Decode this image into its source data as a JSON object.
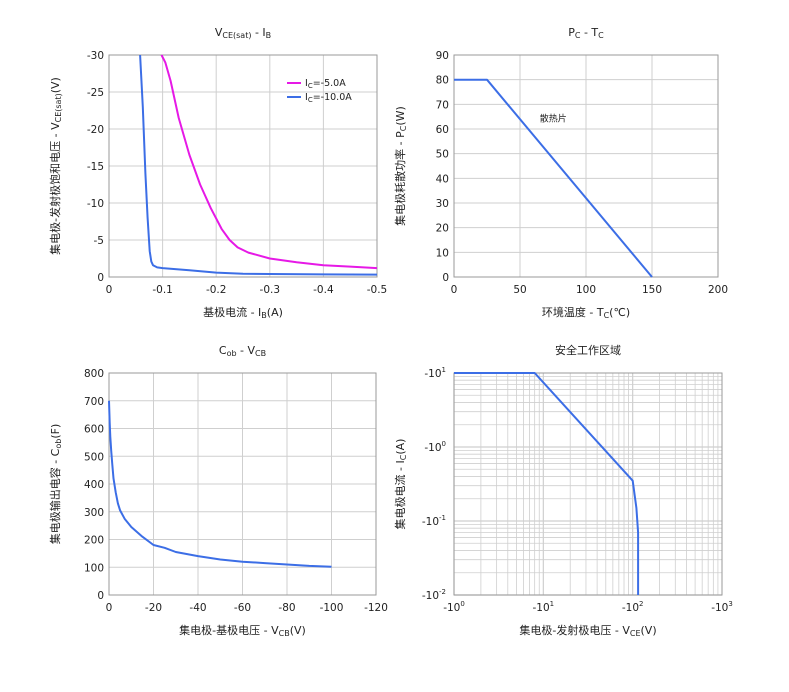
{
  "colors": {
    "blue": "#3c6ee6",
    "magenta": "#e619e6",
    "grid": "#cfcfcf",
    "frame": "#9a9a9a"
  },
  "chart_data": [
    {
      "id": "vce",
      "type": "line",
      "title": [
        "V",
        "CE(sat)",
        " - I",
        "B"
      ],
      "xlabel": [
        "基极电流 - I",
        "B",
        "(A)"
      ],
      "ylabel": [
        "集电极-发射极饱和电压 - V",
        "CE(sat)",
        "(V)"
      ],
      "xlim": [
        0,
        -0.5
      ],
      "ylim": [
        0,
        -30
      ],
      "xticks": [
        0,
        -0.1,
        -0.2,
        -0.3,
        -0.4,
        -0.5
      ],
      "xtick_labels": [
        "0",
        "-0.1",
        "-0.2",
        "-0.3",
        "-0.4",
        "-0.5"
      ],
      "yticks": [
        0,
        -5,
        -10,
        -15,
        -20,
        -25,
        -30
      ],
      "ytick_labels": [
        "0",
        "-5",
        "-10",
        "-15",
        "-20",
        "-25",
        "-30"
      ],
      "legend": "top-right",
      "series": [
        {
          "name": [
            "I",
            "C",
            "=-5.0A"
          ],
          "color": "#e619e6",
          "x": [
            -0.098,
            -0.105,
            -0.115,
            -0.13,
            -0.15,
            -0.17,
            -0.19,
            -0.21,
            -0.225,
            -0.24,
            -0.26,
            -0.3,
            -0.35,
            -0.4,
            -0.45,
            -0.5
          ],
          "y": [
            -30,
            -29,
            -26.5,
            -21.5,
            -16.5,
            -12.5,
            -9.3,
            -6.5,
            -5.0,
            -4.0,
            -3.3,
            -2.5,
            -2.0,
            -1.6,
            -1.4,
            -1.2
          ]
        },
        {
          "name": [
            "I",
            "C",
            "=-10.0A"
          ],
          "color": "#3c6ee6",
          "x": [
            -0.058,
            -0.063,
            -0.068,
            -0.072,
            -0.076,
            -0.079,
            -0.082,
            -0.09,
            -0.1,
            -0.15,
            -0.2,
            -0.25,
            -0.3,
            -0.4,
            -0.5
          ],
          "y": [
            -30,
            -23,
            -14,
            -8,
            -3.5,
            -2.1,
            -1.6,
            -1.3,
            -1.2,
            -0.9,
            -0.6,
            -0.45,
            -0.4,
            -0.35,
            -0.32
          ]
        }
      ]
    },
    {
      "id": "pc",
      "type": "line",
      "title": [
        "P",
        "C",
        " - T",
        "C"
      ],
      "xlabel": [
        "环境温度 - T",
        "C",
        "(℃)"
      ],
      "ylabel": [
        "集电极耗散功率 - P",
        "C",
        "(W)"
      ],
      "xlim": [
        0,
        200
      ],
      "ylim": [
        0,
        90
      ],
      "xticks": [
        0,
        50,
        100,
        150,
        200
      ],
      "xtick_labels": [
        "0",
        "50",
        "100",
        "150",
        "200"
      ],
      "yticks": [
        0,
        10,
        20,
        30,
        40,
        50,
        60,
        70,
        80,
        90
      ],
      "ytick_labels": [
        "0",
        "10",
        "20",
        "30",
        "40",
        "50",
        "60",
        "70",
        "80",
        "90"
      ],
      "annotation": {
        "text": "散热片",
        "x": 65,
        "y": 63
      },
      "series": [
        {
          "color": "#3c6ee6",
          "x": [
            0,
            25,
            150
          ],
          "y": [
            80,
            80,
            0
          ]
        }
      ]
    },
    {
      "id": "cob",
      "type": "line",
      "title": [
        "C",
        "ob",
        " - V",
        "CB"
      ],
      "xlabel": [
        "集电极-基极电压 - V",
        "CB",
        "(V)"
      ],
      "ylabel": [
        "集电极输出电容 - C",
        "ob",
        "(F)"
      ],
      "xlim": [
        0,
        -120
      ],
      "ylim": [
        0,
        800
      ],
      "xticks": [
        0,
        -20,
        -40,
        -60,
        -80,
        -100,
        -120
      ],
      "xtick_labels": [
        "0",
        "-20",
        "-40",
        "-60",
        "-80",
        "-100",
        "-120"
      ],
      "yticks": [
        0,
        100,
        200,
        300,
        400,
        500,
        600,
        700,
        800
      ],
      "ytick_labels": [
        "0",
        "100",
        "200",
        "300",
        "400",
        "500",
        "600",
        "700",
        "800"
      ],
      "series": [
        {
          "color": "#3c6ee6",
          "x": [
            0,
            -0.3,
            -0.6,
            -1,
            -1.5,
            -2,
            -3,
            -4,
            -5,
            -7,
            -10,
            -15,
            -20,
            -25,
            -30,
            -40,
            -50,
            -60,
            -70,
            -80,
            -90,
            -100
          ],
          "y": [
            700,
            620,
            570,
            520,
            470,
            420,
            370,
            330,
            305,
            275,
            245,
            210,
            180,
            170,
            155,
            140,
            128,
            120,
            115,
            110,
            105,
            102
          ]
        }
      ]
    },
    {
      "id": "soa",
      "type": "line",
      "title": [
        "安全工作区域"
      ],
      "xlabel": [
        "集电极-发射极电压 - V",
        "CE",
        "(V)"
      ],
      "ylabel": [
        "集电极电流 - I",
        "C",
        "(A)"
      ],
      "xscale": "log",
      "yscale": "log",
      "xlim": [
        -1,
        -1000
      ],
      "ylim": [
        -0.01,
        -10
      ],
      "xtick_labels": [
        [
          "-10",
          "0"
        ],
        [
          "-10",
          "1"
        ],
        [
          "-10",
          "2"
        ],
        [
          "-10",
          "3"
        ]
      ],
      "ytick_labels": [
        [
          "-10",
          "-2"
        ],
        [
          "-10",
          "-1"
        ],
        [
          "-10",
          "0"
        ],
        [
          "-10",
          "1"
        ]
      ],
      "series": [
        {
          "color": "#3c6ee6",
          "x": [
            -1,
            -8,
            -100,
            -110,
            -115,
            -115
          ],
          "y": [
            -10,
            -10,
            -0.35,
            -0.15,
            -0.07,
            -0.01
          ]
        }
      ]
    }
  ]
}
